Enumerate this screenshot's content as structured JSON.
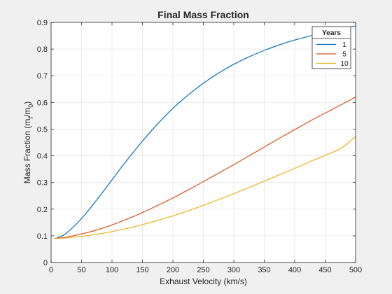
{
  "chart_data": {
    "type": "line",
    "title": "Final Mass Fraction",
    "xlabel": "Exhaust Velocity (km/s)",
    "ylabel_parts": [
      "Mass Fraction (m",
      "f",
      "/m",
      "0",
      ")"
    ],
    "xlim": [
      0,
      500
    ],
    "ylim": [
      0,
      0.9
    ],
    "xticks": [
      0,
      50,
      100,
      150,
      200,
      250,
      300,
      350,
      400,
      450,
      500
    ],
    "yticks": [
      0,
      0.1,
      0.2,
      0.3,
      0.4,
      0.5,
      0.6,
      0.7,
      0.8,
      0.9
    ],
    "xtick_labels": [
      "0",
      "50",
      "100",
      "150",
      "200",
      "250",
      "300",
      "350",
      "400",
      "450",
      "500"
    ],
    "ytick_labels": [
      "0",
      "0.1",
      "0.2",
      "0.3",
      "0.4",
      "0.5",
      "0.6",
      "0.7",
      "0.8",
      "0.9"
    ],
    "grid": true,
    "legend": {
      "title": "Years",
      "placement": "top-right"
    },
    "x": [
      5,
      10,
      25,
      50,
      75,
      100,
      125,
      150,
      175,
      200,
      225,
      250,
      275,
      300,
      325,
      350,
      375,
      400,
      425,
      450,
      475,
      500
    ],
    "series": [
      {
        "name": "1",
        "color": "#0072BD",
        "values": [
          0.09,
          0.092,
          0.11,
          0.165,
          0.235,
          0.31,
          0.385,
          0.455,
          0.52,
          0.578,
          0.628,
          0.672,
          0.71,
          0.743,
          0.771,
          0.795,
          0.816,
          0.834,
          0.849,
          0.862,
          0.874,
          0.887
        ]
      },
      {
        "name": "5",
        "color": "#D95319",
        "values": [
          0.09,
          0.091,
          0.095,
          0.107,
          0.122,
          0.141,
          0.163,
          0.187,
          0.214,
          0.242,
          0.272,
          0.303,
          0.335,
          0.367,
          0.4,
          0.433,
          0.466,
          0.498,
          0.53,
          0.56,
          0.59,
          0.62
        ]
      },
      {
        "name": "10",
        "color": "#EDB120",
        "values": [
          0.09,
          0.09,
          0.092,
          0.098,
          0.106,
          0.116,
          0.128,
          0.142,
          0.158,
          0.175,
          0.194,
          0.214,
          0.236,
          0.258,
          0.281,
          0.305,
          0.329,
          0.353,
          0.378,
          0.402,
          0.427,
          0.472
        ]
      }
    ]
  }
}
